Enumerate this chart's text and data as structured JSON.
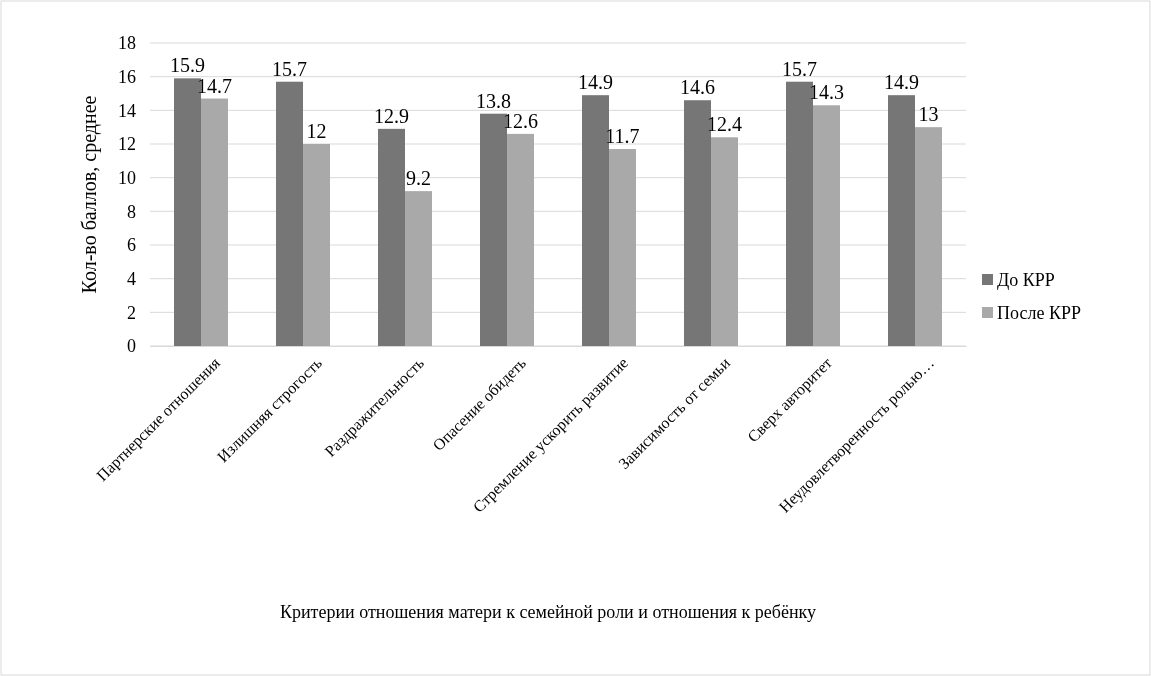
{
  "chart_data": {
    "type": "bar",
    "xlabel": "Критерии отношения матери к семейной роли и отношения к ребёнку",
    "ylabel": "Кол-во баллов, среднее",
    "categories": [
      "Партнерские отношения",
      "Излишняя строгость",
      "Раздражительность",
      "Опасение обидеть",
      "Стремление ускорить развитие",
      "Зависимость от семьи",
      "Сверх авторитет",
      "Неудовлетворенность ролью…"
    ],
    "series": [
      {
        "name": "До КРР",
        "color": "#767676",
        "values": [
          15.9,
          15.7,
          12.9,
          13.8,
          14.9,
          14.6,
          15.7,
          14.9
        ]
      },
      {
        "name": "После КРР",
        "color": "#a9a9a9",
        "values": [
          14.7,
          12,
          9.2,
          12.6,
          11.7,
          12.4,
          14.3,
          13
        ]
      }
    ],
    "ylim": [
      0,
      18
    ],
    "yticks": [
      0,
      2,
      4,
      6,
      8,
      10,
      12,
      14,
      16,
      18
    ],
    "grid": "y",
    "legend": "right",
    "data_labels": true
  }
}
